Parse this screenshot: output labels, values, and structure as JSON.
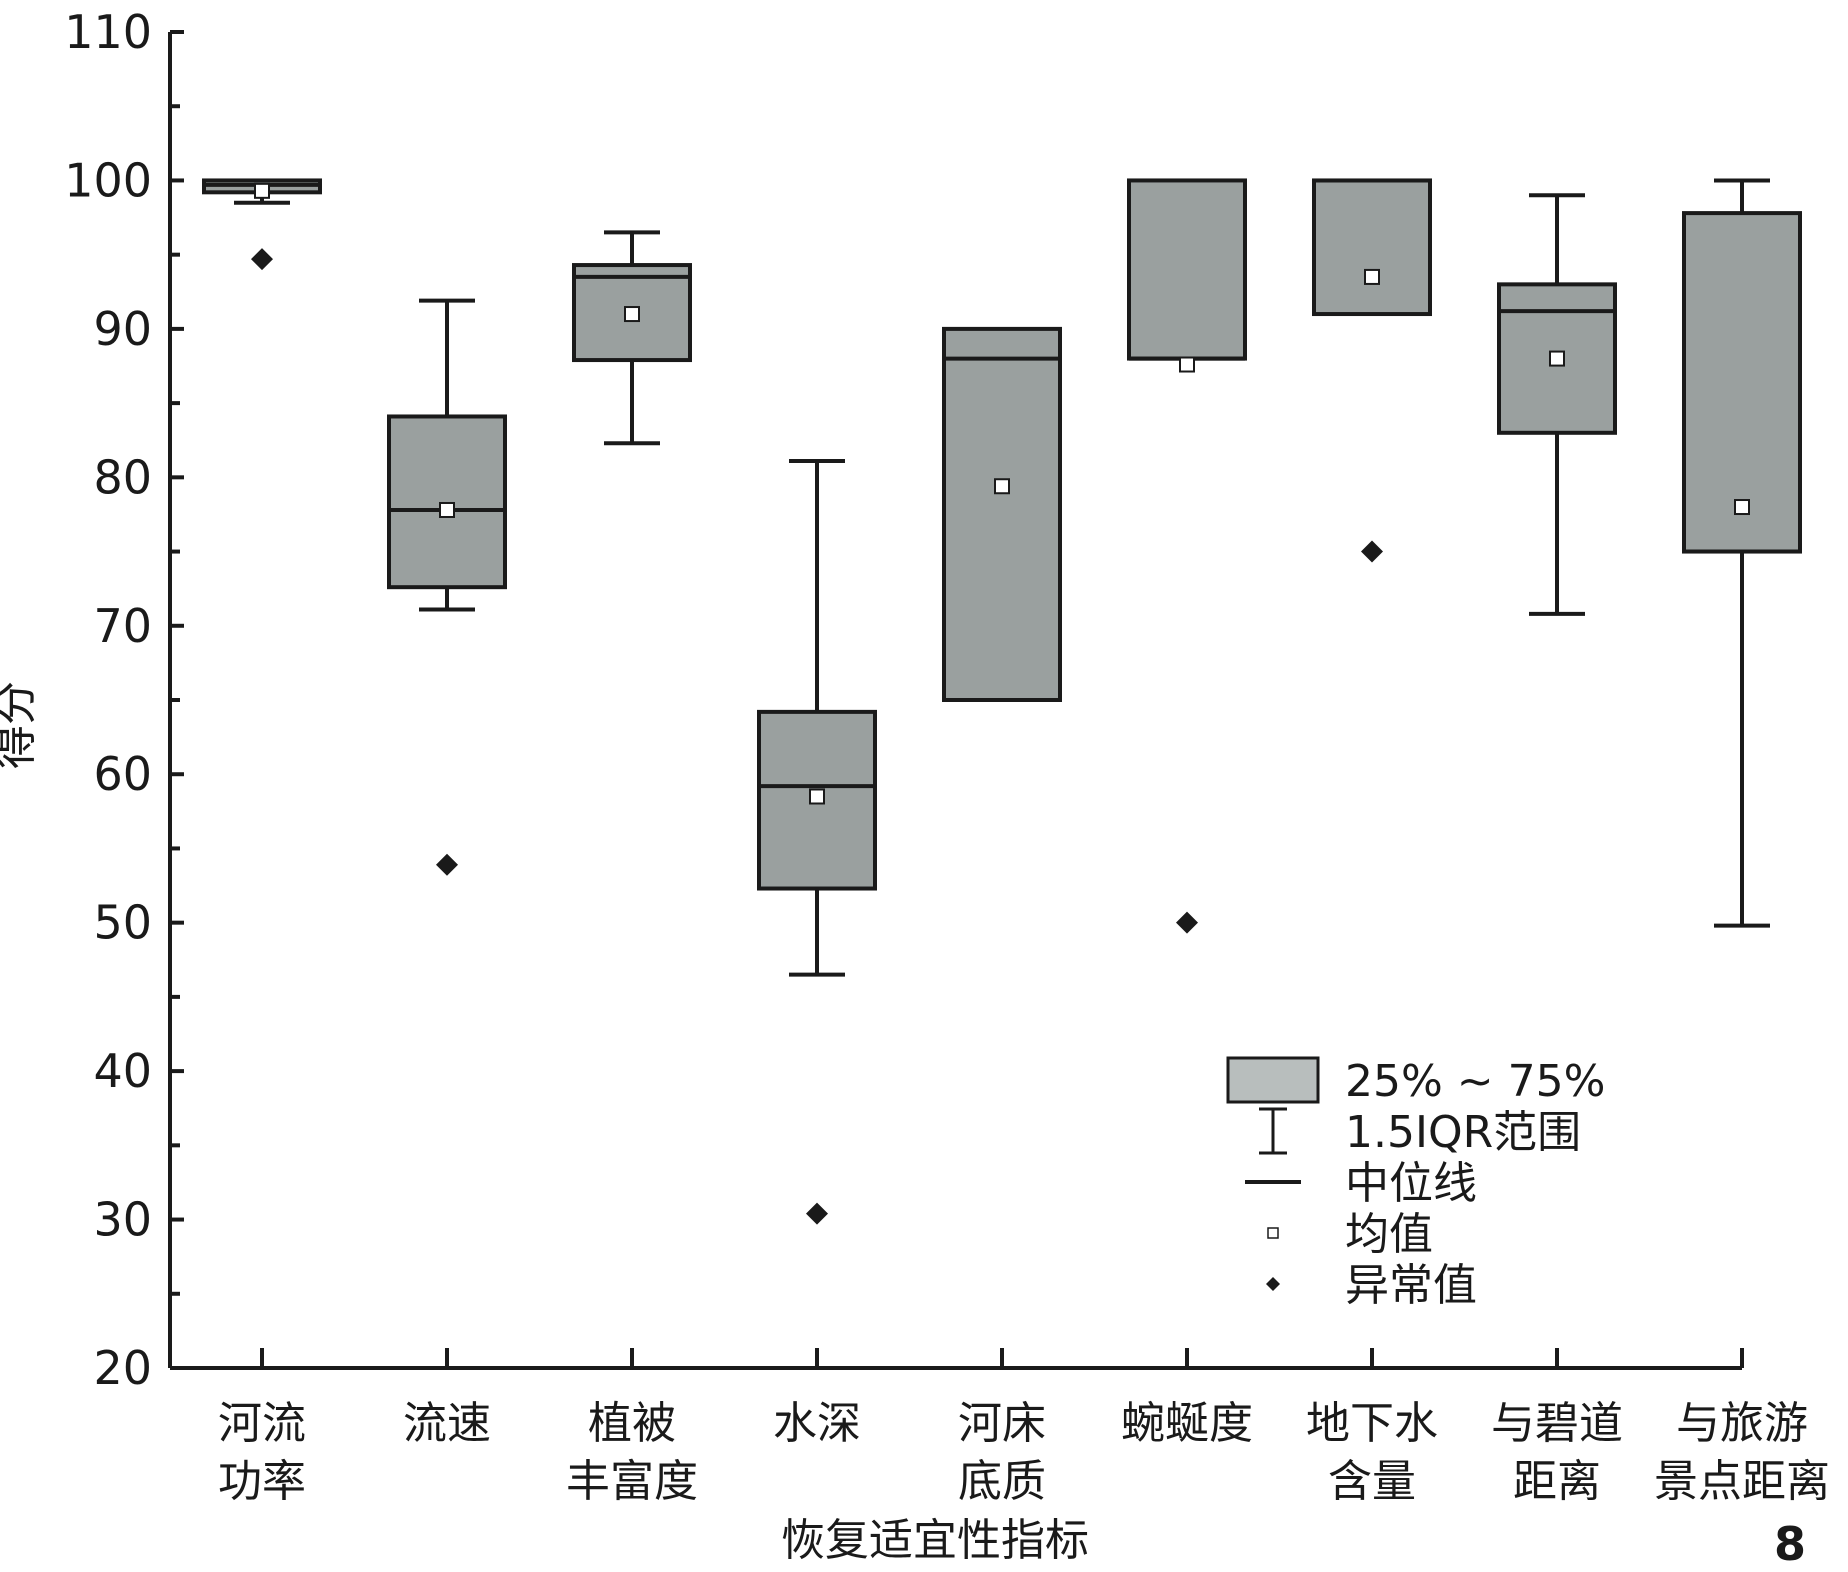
{
  "chart_data": {
    "type": "box",
    "ylabel": "得分",
    "xlabel": "恢复适宜性指标",
    "ylim": [
      20,
      110
    ],
    "yticks": [
      20,
      30,
      40,
      50,
      60,
      70,
      80,
      90,
      100,
      110
    ],
    "grid": false,
    "legend_position": "bottom-right",
    "panel_label": "8",
    "colors": {
      "box_fill": "#9aa09f",
      "legend_box_fill": "#b8bebd",
      "stroke": "#1a1a1a"
    },
    "legend": [
      {
        "key": "box",
        "label": "25% ~ 75%"
      },
      {
        "key": "whisker",
        "label": "1.5IQR范围"
      },
      {
        "key": "median",
        "label": "中位线"
      },
      {
        "key": "mean",
        "label": "均值"
      },
      {
        "key": "outlier",
        "label": "异常值"
      }
    ],
    "categories": [
      {
        "lines": [
          "河流",
          "功率"
        ],
        "whisker_low": 98.5,
        "q1": 99.2,
        "median": 99.7,
        "q3": 100,
        "whisker_high": 100,
        "mean": 99.3,
        "outliers": [
          94.7
        ]
      },
      {
        "lines": [
          "流速"
        ],
        "whisker_low": 71.1,
        "q1": 72.6,
        "median": 77.8,
        "q3": 84.1,
        "whisker_high": 91.9,
        "mean": 77.8,
        "outliers": [
          53.9
        ]
      },
      {
        "lines": [
          "植被",
          "丰富度"
        ],
        "whisker_low": 82.3,
        "q1": 87.9,
        "median": 93.5,
        "q3": 94.3,
        "whisker_high": 96.5,
        "mean": 91.0,
        "outliers": []
      },
      {
        "lines": [
          "水深"
        ],
        "whisker_low": 46.5,
        "q1": 52.3,
        "median": 59.2,
        "q3": 64.2,
        "whisker_high": 81.1,
        "mean": 58.5,
        "outliers": [
          30.4
        ]
      },
      {
        "lines": [
          "河床",
          "底质"
        ],
        "whisker_low": 65,
        "q1": 65,
        "median": 88,
        "q3": 90,
        "whisker_high": 90,
        "mean": 79.4,
        "outliers": []
      },
      {
        "lines": [
          "蜿蜒度"
        ],
        "whisker_low": 88,
        "q1": 88,
        "median": 88,
        "q3": 100,
        "whisker_high": 100,
        "mean": 87.6,
        "outliers": [
          50
        ]
      },
      {
        "lines": [
          "地下水",
          "含量"
        ],
        "whisker_low": 91,
        "q1": 91,
        "median": 100,
        "q3": 100,
        "whisker_high": 100,
        "mean": 93.5,
        "outliers": [
          75
        ]
      },
      {
        "lines": [
          "与碧道",
          "距离"
        ],
        "whisker_low": 70.8,
        "q1": 83,
        "median": 91.2,
        "q3": 93,
        "whisker_high": 99,
        "mean": 88.0,
        "outliers": []
      },
      {
        "lines": [
          "与旅游",
          "景点距离"
        ],
        "whisker_low": 49.8,
        "q1": 75,
        "median": 75,
        "q3": 97.8,
        "whisker_high": 100,
        "mean": 78.0,
        "outliers": []
      }
    ]
  }
}
